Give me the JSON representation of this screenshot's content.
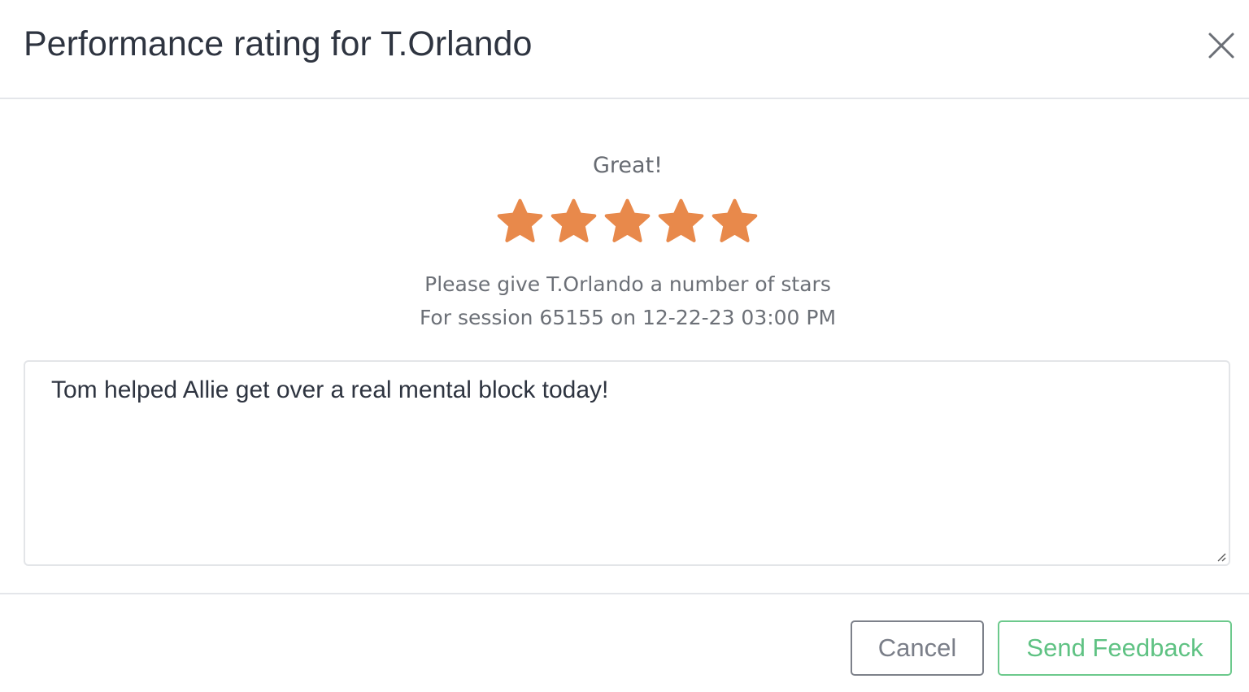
{
  "dialog": {
    "title": "Performance rating for T.Orlando",
    "close_icon": "close-icon"
  },
  "rating": {
    "label": "Great!",
    "value": 5,
    "max": 5,
    "star_color": "#e8894b",
    "prompt": "Please give T.Orlando a number of stars",
    "session": "For session 65155 on 12-22-23 03:00 PM"
  },
  "feedback": {
    "value": "Tom helped Allie get over a real mental block today!"
  },
  "footer": {
    "cancel_label": "Cancel",
    "send_label": "Send Feedback",
    "send_color": "#5fc283"
  }
}
